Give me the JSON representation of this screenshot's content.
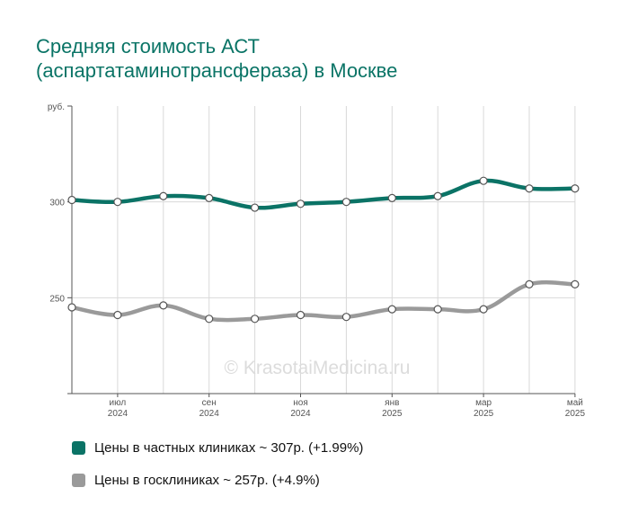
{
  "title": {
    "line1": "Средняя стоимость АСТ",
    "line2": "(аспартатаминотрансфераза) в Москве"
  },
  "watermark": "© KrasotaiMedicina.ru",
  "colors": {
    "title": "#0a7466",
    "private": "#0b7366",
    "public": "#9a9a9a",
    "grid": "#d9d9d9"
  },
  "legend": [
    {
      "label": "Цены в частных клиниках ~ 307р. (+1.99%)",
      "color": "#0b7366"
    },
    {
      "label": "Цены в госклиниках ~ 257р. (+4.9%)",
      "color": "#9a9a9a"
    }
  ],
  "chart_data": {
    "type": "line",
    "y_unit": "руб.",
    "ylim": [
      200,
      350
    ],
    "y_ticks": [
      250,
      300
    ],
    "x": [
      "2024-06",
      "2024-07",
      "2024-08",
      "2024-09",
      "2024-10",
      "2024-11",
      "2024-12",
      "2025-01",
      "2025-02",
      "2025-03",
      "2025-04",
      "2025-05"
    ],
    "x_tick_labels": [
      {
        "index": 1,
        "month": "июл",
        "year": "2024"
      },
      {
        "index": 3,
        "month": "сен",
        "year": "2024"
      },
      {
        "index": 5,
        "month": "ноя",
        "year": "2024"
      },
      {
        "index": 7,
        "month": "янв",
        "year": "2025"
      },
      {
        "index": 9,
        "month": "мар",
        "year": "2025"
      },
      {
        "index": 11,
        "month": "май",
        "year": "2025"
      }
    ],
    "grid": true,
    "series": [
      {
        "name": "Цены в частных клиниках",
        "color": "#0b7366",
        "values": [
          301,
          300,
          303,
          302,
          297,
          299,
          300,
          302,
          303,
          311,
          307,
          307
        ]
      },
      {
        "name": "Цены в госклиниках",
        "color": "#9a9a9a",
        "values": [
          245,
          241,
          246,
          239,
          239,
          241,
          240,
          244,
          244,
          244,
          257,
          257
        ]
      }
    ]
  }
}
